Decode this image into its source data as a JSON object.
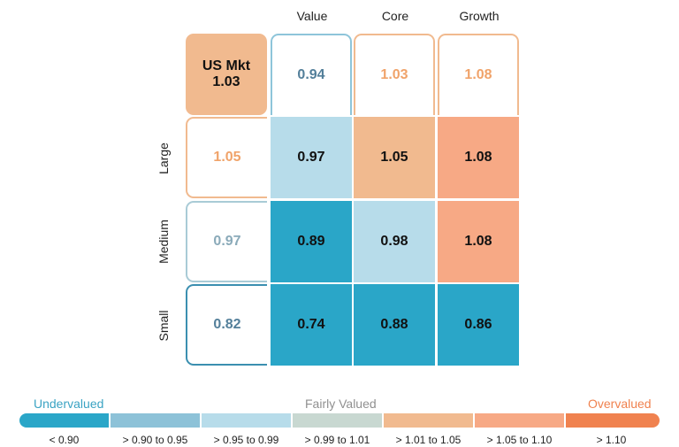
{
  "chart_data": {
    "type": "heatmap",
    "columns": [
      "Value",
      "Core",
      "Growth"
    ],
    "rows": [
      "Large",
      "Medium",
      "Small"
    ],
    "market": {
      "label": "US Mkt",
      "value": "1.03"
    },
    "column_totals": [
      "0.94",
      "1.03",
      "1.08"
    ],
    "row_totals": [
      "1.05",
      "0.97",
      "0.82"
    ],
    "values": [
      [
        "0.97",
        "1.05",
        "1.08"
      ],
      [
        "0.89",
        "0.98",
        "1.08"
      ],
      [
        "0.74",
        "0.88",
        "0.86"
      ]
    ],
    "legend": {
      "labels": {
        "left": "Undervalued",
        "center": "Fairly Valued",
        "right": "Overvalued"
      },
      "bins": [
        {
          "label": "< 0.90",
          "color": "#2aa6c8"
        },
        {
          "label": "> 0.90 to 0.95",
          "color": "#8dc2d8"
        },
        {
          "label": "> 0.95 to 0.99",
          "color": "#b7dcea"
        },
        {
          "label": "> 0.99 to 1.01",
          "color": "#c8d8d1"
        },
        {
          "label": "> 1.01 to 1.05",
          "color": "#f1ba8f"
        },
        {
          "label": "> 1.05 to 1.10",
          "color": "#f7a985"
        },
        {
          "label": "> 1.10",
          "color": "#f0824f"
        }
      ]
    },
    "colors": {
      "undervalued_text": "#3aa3c3",
      "fair_text": "#909090",
      "overvalued_text": "#f0824f",
      "blue_outline": "#8ec5da",
      "orange_outline": "#f1ba8f",
      "gray_blue_outline": "#a9cbd6",
      "dark_blue_outline": "#3b8fb0",
      "text_blue": "#537f9a",
      "text_orange": "#f0a36a",
      "text_grayblue": "#8aaab9"
    }
  }
}
